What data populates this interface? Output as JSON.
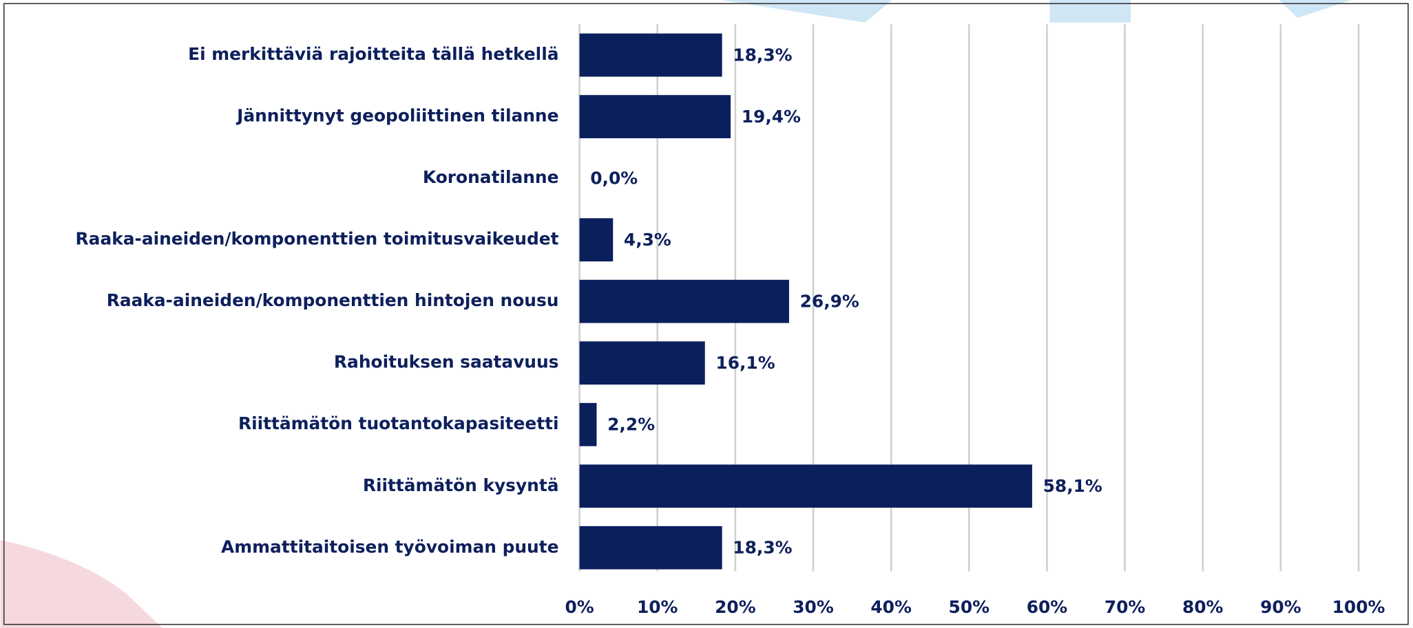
{
  "chart_data": {
    "type": "hbar",
    "categories": [
      "Ei merkittäviä rajoitteita tällä hetkellä",
      "Jännittynyt geopoliittinen tilanne",
      "Koronatilanne",
      "Raaka-aineiden/komponenttien toimitusvaikeudet",
      "Raaka-aineiden/komponenttien hintojen nousu",
      "Rahoituksen saatavuus",
      "Riittämätön tuotantokapasiteetti",
      "Riittämätön kysyntä",
      "Ammattitaitoisen työvoiman puute"
    ],
    "values": [
      18.3,
      19.4,
      0.0,
      4.3,
      26.9,
      16.1,
      2.2,
      58.1,
      18.3
    ],
    "value_labels": [
      "18,3%",
      "19,4%",
      "0,0%",
      "4,3%",
      "26,9%",
      "16,1%",
      "2,2%",
      "58,1%",
      "18,3%"
    ],
    "color": "#0a1f5c",
    "xlim": [
      0,
      100
    ],
    "xticks": [
      {
        "value": 0,
        "label": "0%"
      },
      {
        "value": 10,
        "label": "10%"
      },
      {
        "value": 20,
        "label": "20%"
      },
      {
        "value": 30,
        "label": "30%"
      },
      {
        "value": 40,
        "label": "40%"
      },
      {
        "value": 50,
        "label": "50%"
      },
      {
        "value": 60,
        "label": "60%"
      },
      {
        "value": 70,
        "label": "70%"
      },
      {
        "value": 80,
        "label": "80%"
      },
      {
        "value": 90,
        "label": "90%"
      },
      {
        "value": 100,
        "label": "100%"
      }
    ],
    "grid": true
  }
}
